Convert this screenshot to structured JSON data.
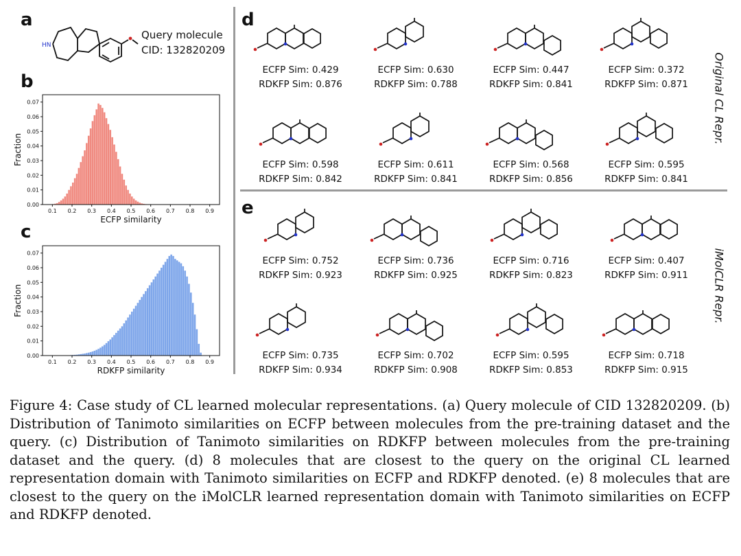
{
  "panels": {
    "a": "a",
    "b": "b",
    "c": "c",
    "d": "d",
    "e": "e"
  },
  "query": {
    "line1": "Query molecule",
    "line2": "CID: 132820209",
    "atom_label": "HN"
  },
  "side_labels": {
    "d": "Original CL Repr.",
    "e": "iMolCLR Repr."
  },
  "chart_data": [
    {
      "type": "bar",
      "panel": "b",
      "xlabel": "ECFP similarity",
      "ylabel": "Fraction",
      "xlim": [
        0.05,
        0.95
      ],
      "ylim": [
        0,
        0.075
      ],
      "xticks": [
        "0.1",
        "0.2",
        "0.3",
        "0.4",
        "0.5",
        "0.6",
        "0.7",
        "0.8",
        "0.9"
      ],
      "yticks": [
        "0.00",
        "0.01",
        "0.02",
        "0.03",
        "0.04",
        "0.05",
        "0.06",
        "0.07"
      ],
      "color": "#f08a80",
      "bin_width": 0.01,
      "bin_start": 0.1,
      "values": [
        0.0003,
        0.0006,
        0.001,
        0.0018,
        0.0028,
        0.004,
        0.0055,
        0.0075,
        0.01,
        0.0125,
        0.015,
        0.018,
        0.021,
        0.025,
        0.029,
        0.033,
        0.037,
        0.042,
        0.047,
        0.052,
        0.057,
        0.061,
        0.065,
        0.069,
        0.068,
        0.066,
        0.063,
        0.059,
        0.055,
        0.051,
        0.046,
        0.041,
        0.036,
        0.031,
        0.026,
        0.021,
        0.017,
        0.013,
        0.01,
        0.0075,
        0.0055,
        0.004,
        0.0028,
        0.002,
        0.0013,
        0.0008,
        0.0005,
        0.0003,
        0.0002,
        0.0001
      ]
    },
    {
      "type": "bar",
      "panel": "c",
      "xlabel": "RDKFP similarity",
      "ylabel": "Fraction",
      "xlim": [
        0.05,
        0.95
      ],
      "ylim": [
        0,
        0.075
      ],
      "xticks": [
        "0.1",
        "0.2",
        "0.3",
        "0.4",
        "0.5",
        "0.6",
        "0.7",
        "0.8",
        "0.9"
      ],
      "yticks": [
        "0.00",
        "0.01",
        "0.02",
        "0.03",
        "0.04",
        "0.05",
        "0.06",
        "0.07"
      ],
      "color": "#7ea6ea",
      "bin_width": 0.01,
      "bin_start": 0.15,
      "values": [
        0.0001,
        0.0001,
        0.0002,
        0.0002,
        0.0003,
        0.0004,
        0.0005,
        0.0006,
        0.0008,
        0.001,
        0.0012,
        0.0014,
        0.0017,
        0.002,
        0.0024,
        0.0028,
        0.0033,
        0.0039,
        0.0046,
        0.0054,
        0.0063,
        0.0073,
        0.0085,
        0.0098,
        0.011,
        0.0125,
        0.014,
        0.0155,
        0.017,
        0.0185,
        0.02,
        0.022,
        0.024,
        0.026,
        0.028,
        0.03,
        0.032,
        0.034,
        0.036,
        0.038,
        0.04,
        0.042,
        0.044,
        0.046,
        0.048,
        0.05,
        0.052,
        0.054,
        0.056,
        0.058,
        0.06,
        0.062,
        0.064,
        0.066,
        0.068,
        0.069,
        0.068,
        0.066,
        0.065,
        0.064,
        0.063,
        0.061,
        0.058,
        0.054,
        0.049,
        0.043,
        0.036,
        0.028,
        0.018,
        0.008,
        0.002
      ]
    }
  ],
  "original_cl": [
    {
      "ecfp": "ECFP Sim: 0.429",
      "rdkfp": "RDKFP Sim: 0.876"
    },
    {
      "ecfp": "ECFP Sim: 0.630",
      "rdkfp": "RDKFP Sim: 0.788"
    },
    {
      "ecfp": "ECFP Sim: 0.447",
      "rdkfp": "RDKFP Sim: 0.841"
    },
    {
      "ecfp": "ECFP Sim: 0.372",
      "rdkfp": "RDKFP Sim: 0.871"
    },
    {
      "ecfp": "ECFP Sim: 0.598",
      "rdkfp": "RDKFP Sim: 0.842"
    },
    {
      "ecfp": "ECFP Sim: 0.611",
      "rdkfp": "RDKFP Sim: 0.841"
    },
    {
      "ecfp": "ECFP Sim: 0.568",
      "rdkfp": "RDKFP Sim: 0.856"
    },
    {
      "ecfp": "ECFP Sim: 0.595",
      "rdkfp": "RDKFP Sim: 0.841"
    }
  ],
  "imolclr": [
    {
      "ecfp": "ECFP Sim: 0.752",
      "rdkfp": "RDKFP Sim: 0.923"
    },
    {
      "ecfp": "ECFP Sim: 0.736",
      "rdkfp": "RDKFP Sim: 0.925"
    },
    {
      "ecfp": "ECFP Sim: 0.716",
      "rdkfp": "RDKFP Sim: 0.823"
    },
    {
      "ecfp": "ECFP Sim: 0.407",
      "rdkfp": "RDKFP Sim: 0.911"
    },
    {
      "ecfp": "ECFP Sim: 0.735",
      "rdkfp": "RDKFP Sim: 0.934"
    },
    {
      "ecfp": "ECFP Sim: 0.702",
      "rdkfp": "RDKFP Sim: 0.908"
    },
    {
      "ecfp": "ECFP Sim: 0.595",
      "rdkfp": "RDKFP Sim: 0.853"
    },
    {
      "ecfp": "ECFP Sim: 0.718",
      "rdkfp": "RDKFP Sim: 0.915"
    }
  ],
  "caption": {
    "label": "Figure 4:",
    "text": "Case study of CL learned molecular representations. (a) Query molecule of CID 132820209. (b) Distribution of Tanimoto similarities on ECFP between molecules from the pre-training dataset and the query. (c) Distribution of Tanimoto similarities on RDKFP between molecules from the pre-training dataset and the query. (d) 8 molecules that are closest to the query on the original CL learned representation domain with Tanimoto similarities on ECFP and RDKFP denoted. (e) 8 molecules that are closest to the query on the iMolCLR learned representation domain with Tanimoto similarities on ECFP and RDKFP denoted."
  }
}
